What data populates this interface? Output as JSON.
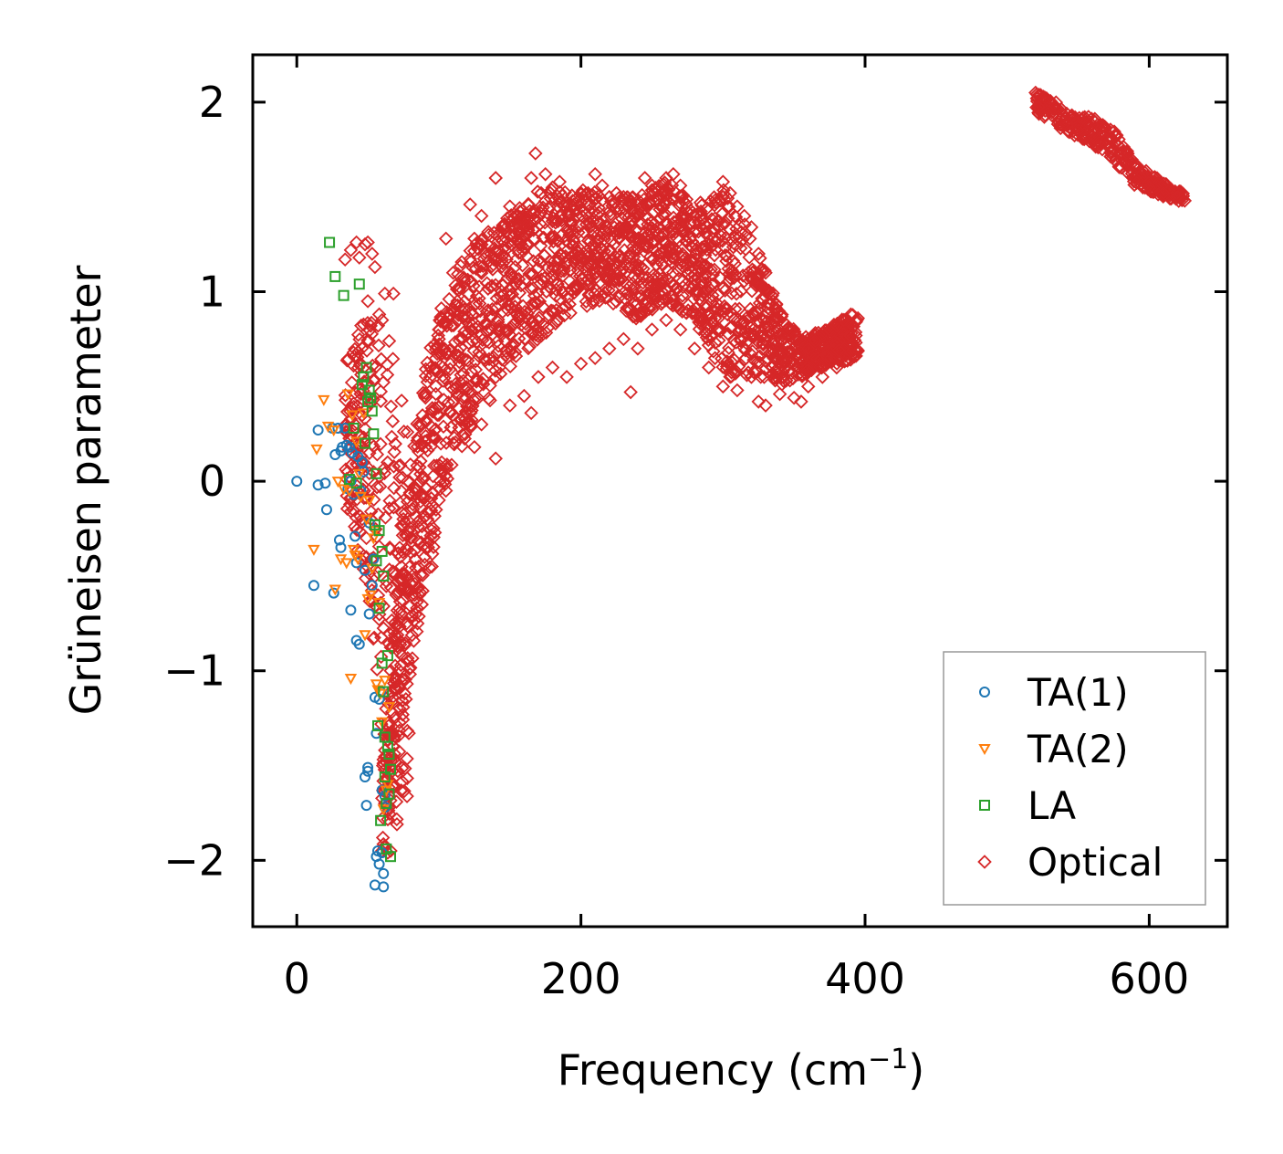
{
  "chart_data": {
    "type": "scatter",
    "title": "",
    "xlabel": "Frequency (cm",
    "xlabel_superscript": "−1",
    "xlabel_suffix": ")",
    "ylabel": "Grüneisen parameter",
    "xlim": [
      -31,
      655
    ],
    "ylim": [
      -2.35,
      2.25
    ],
    "xticks": [
      0,
      200,
      400,
      600
    ],
    "xtick_labels": [
      "0",
      "200",
      "400",
      "600"
    ],
    "yticks": [
      -2,
      -1,
      0,
      1,
      2
    ],
    "ytick_labels": [
      "−2",
      "−1",
      "0",
      "1",
      "2"
    ],
    "grid": false,
    "legend_position": "lower-right",
    "series": [
      {
        "name": "TA(1)",
        "marker": "circle",
        "color": "#1f77b4",
        "points": [
          [
            0,
            0
          ],
          [
            12,
            -0.55
          ],
          [
            15,
            0.27
          ],
          [
            15,
            -0.02
          ],
          [
            20,
            -0.01
          ],
          [
            21,
            -0.15
          ],
          [
            25,
            0.28
          ],
          [
            26,
            -0.59
          ],
          [
            27,
            0.14
          ],
          [
            29,
            0.28
          ],
          [
            30,
            -0.31
          ],
          [
            31,
            0.16
          ],
          [
            31,
            -0.35
          ],
          [
            32,
            0.18
          ],
          [
            34,
            0.28
          ],
          [
            35,
            0.19
          ],
          [
            36,
            -0.04
          ],
          [
            37,
            0.18
          ],
          [
            38,
            -0.68
          ],
          [
            38,
            0.0
          ],
          [
            39,
            0.15
          ],
          [
            40,
            -0.07
          ],
          [
            41,
            -0.29
          ],
          [
            42,
            -0.84
          ],
          [
            42,
            -0.43
          ],
          [
            43,
            0.13
          ],
          [
            44,
            -0.86
          ],
          [
            45,
            -0.05
          ],
          [
            46,
            0.1
          ],
          [
            47,
            0.05
          ],
          [
            48,
            -0.47
          ],
          [
            48,
            -1.56
          ],
          [
            49,
            -1.71
          ],
          [
            50,
            -1.53
          ],
          [
            50,
            -1.51
          ],
          [
            51,
            -0.22
          ],
          [
            51,
            -0.7
          ],
          [
            53,
            -0.55
          ],
          [
            54,
            -0.41
          ],
          [
            55,
            -2.13
          ],
          [
            55,
            -1.14
          ],
          [
            56,
            -1.98
          ],
          [
            56,
            -1.33
          ],
          [
            57,
            -1.95
          ],
          [
            58,
            -2.02
          ],
          [
            58,
            -1.15
          ],
          [
            59,
            -1.11
          ],
          [
            60,
            -1.96
          ],
          [
            60,
            -1.63
          ],
          [
            61,
            -2.14
          ],
          [
            61,
            -2.07
          ],
          [
            62,
            -1.66
          ],
          [
            62,
            -1.72
          ]
        ]
      },
      {
        "name": "TA(2)",
        "marker": "triangle-down",
        "color": "#ff7f0e",
        "points": [
          [
            12,
            -0.36
          ],
          [
            14,
            0.17
          ],
          [
            19,
            0.43
          ],
          [
            22,
            0.29
          ],
          [
            26,
            0.27
          ],
          [
            27,
            -0.57
          ],
          [
            29,
            0.0
          ],
          [
            31,
            -0.41
          ],
          [
            33,
            -0.04
          ],
          [
            35,
            -0.43
          ],
          [
            36,
            0.46
          ],
          [
            37,
            -0.05
          ],
          [
            38,
            -1.04
          ],
          [
            39,
            0.35
          ],
          [
            40,
            -0.36
          ],
          [
            41,
            -0.39
          ],
          [
            42,
            0.21
          ],
          [
            43,
            -0.41
          ],
          [
            44,
            0.04
          ],
          [
            45,
            -0.08
          ],
          [
            47,
            0.36
          ],
          [
            48,
            -0.81
          ],
          [
            49,
            -0.2
          ],
          [
            50,
            -0.62
          ],
          [
            51,
            -0.1
          ],
          [
            52,
            -0.6
          ],
          [
            53,
            -0.46
          ],
          [
            54,
            -0.3
          ],
          [
            55,
            -0.26
          ],
          [
            56,
            -1.07
          ],
          [
            57,
            -1.1
          ],
          [
            58,
            -0.64
          ],
          [
            59,
            -1.12
          ],
          [
            60,
            -1.27
          ],
          [
            61,
            -1.73
          ],
          [
            62,
            -1.05
          ],
          [
            63,
            -1.63
          ],
          [
            64,
            -1.6
          ],
          [
            65,
            -1.19
          ]
        ]
      },
      {
        "name": "LA",
        "marker": "square",
        "color": "#2ca02c",
        "points": [
          [
            23,
            1.26
          ],
          [
            27,
            1.08
          ],
          [
            33,
            0.98
          ],
          [
            37,
            0.01
          ],
          [
            40,
            0.28
          ],
          [
            42,
            -0.01
          ],
          [
            44,
            1.04
          ],
          [
            46,
            0.51
          ],
          [
            47,
            0.55
          ],
          [
            48,
            0.2
          ],
          [
            49,
            0.6
          ],
          [
            50,
            0.42
          ],
          [
            51,
            0.48
          ],
          [
            52,
            0.44
          ],
          [
            53,
            0.37
          ],
          [
            54,
            0.25
          ],
          [
            55,
            -0.23
          ],
          [
            56,
            0.04
          ],
          [
            56,
            -0.42
          ],
          [
            57,
            -1.29
          ],
          [
            58,
            -0.26
          ],
          [
            58,
            -0.67
          ],
          [
            59,
            -1.79
          ],
          [
            60,
            -0.37
          ],
          [
            60,
            -0.96
          ],
          [
            61,
            -1.11
          ],
          [
            61,
            -0.5
          ],
          [
            62,
            -1.35
          ],
          [
            62,
            -1.56
          ],
          [
            63,
            -1.7
          ],
          [
            63,
            -1.94
          ],
          [
            64,
            -0.92
          ],
          [
            64,
            -1.4
          ],
          [
            65,
            -1.44
          ],
          [
            65,
            -1.65
          ],
          [
            66,
            -1.98
          ],
          [
            66,
            -1.52
          ]
        ]
      },
      {
        "name": "Optical",
        "marker": "diamond",
        "color": "#d62728",
        "density": 2600,
        "envelope_description": "dense clouds: low-frequency band 34–80 cm^-1 spanning -2.0 to 1.3; main band 60–400 cm^-1 rising from about -2 to 1.2–1.6 then falling to 0.5–0.8; high-frequency band 520–630 cm^-1 decreasing from 2.05 to 1.48",
        "points": [
          [
            34,
            1.17
          ],
          [
            38,
            1.22
          ],
          [
            42,
            1.26
          ],
          [
            44,
            1.18
          ],
          [
            48,
            1.25
          ],
          [
            50,
            1.26
          ],
          [
            53,
            1.2
          ],
          [
            55,
            1.13
          ],
          [
            58,
            0.88
          ],
          [
            60,
            0.85
          ],
          [
            62,
            0.99
          ],
          [
            65,
            0.74
          ],
          [
            68,
            0.99
          ],
          [
            36,
            0.64
          ],
          [
            40,
            0.61
          ],
          [
            45,
            0.62
          ],
          [
            50,
            0.95
          ],
          [
            52,
            0.82
          ],
          [
            40,
            0.41
          ],
          [
            41,
            0.3
          ],
          [
            44,
            0.2
          ],
          [
            46,
            -0.2
          ],
          [
            49,
            -0.3
          ],
          [
            52,
            -0.2
          ],
          [
            55,
            -0.5
          ],
          [
            47,
            0.1
          ],
          [
            60,
            -1.95
          ],
          [
            62,
            -1.93
          ],
          [
            64,
            -1.96
          ],
          [
            66,
            -1.95
          ],
          [
            62,
            -1.7
          ],
          [
            65,
            -1.66
          ],
          [
            68,
            -1.4
          ],
          [
            70,
            -1.1
          ],
          [
            72,
            -0.9
          ],
          [
            74,
            -0.7
          ],
          [
            70,
            -0.6
          ],
          [
            73,
            -0.4
          ],
          [
            75,
            -0.2
          ],
          [
            78,
            0.0
          ],
          [
            80,
            -0.3
          ],
          [
            83,
            -0.6
          ],
          [
            85,
            -0.75
          ],
          [
            88,
            -0.65
          ],
          [
            90,
            -0.4
          ],
          [
            92,
            -0.2
          ],
          [
            95,
            -0.45
          ],
          [
            98,
            -0.15
          ],
          [
            100,
            -0.1
          ],
          [
            102,
            0.1
          ],
          [
            105,
            -0.05
          ],
          [
            88,
            0.3
          ],
          [
            90,
            0.45
          ],
          [
            94,
            0.6
          ],
          [
            100,
            0.8
          ],
          [
            105,
            1.28
          ],
          [
            110,
            1.1
          ],
          [
            115,
            1.02
          ],
          [
            118,
            1.05
          ],
          [
            122,
            1.46
          ],
          [
            125,
            1.28
          ],
          [
            130,
            1.4
          ],
          [
            135,
            1.3
          ],
          [
            140,
            1.6
          ],
          [
            145,
            1.35
          ],
          [
            150,
            1.45
          ],
          [
            155,
            1.4
          ],
          [
            160,
            1.38
          ],
          [
            165,
            1.6
          ],
          [
            168,
            1.73
          ],
          [
            172,
            1.52
          ],
          [
            175,
            1.62
          ],
          [
            178,
            1.45
          ],
          [
            180,
            1.55
          ],
          [
            185,
            1.58
          ],
          [
            190,
            1.47
          ],
          [
            195,
            1.46
          ],
          [
            200,
            1.52
          ],
          [
            205,
            1.52
          ],
          [
            210,
            1.62
          ],
          [
            215,
            1.56
          ],
          [
            220,
            1.5
          ],
          [
            225,
            1.52
          ],
          [
            230,
            1.5
          ],
          [
            235,
            1.48
          ],
          [
            240,
            1.42
          ],
          [
            245,
            1.6
          ],
          [
            250,
            1.56
          ],
          [
            255,
            1.46
          ],
          [
            260,
            1.6
          ],
          [
            265,
            1.62
          ],
          [
            270,
            1.56
          ],
          [
            275,
            1.42
          ],
          [
            280,
            1.4
          ],
          [
            285,
            1.38
          ],
          [
            290,
            1.36
          ],
          [
            295,
            1.47
          ],
          [
            300,
            1.58
          ],
          [
            305,
            1.52
          ],
          [
            310,
            1.45
          ],
          [
            315,
            1.4
          ],
          [
            320,
            1.34
          ],
          [
            325,
            1.2
          ],
          [
            330,
            1.1
          ],
          [
            335,
            0.95
          ],
          [
            340,
            0.85
          ],
          [
            345,
            0.8
          ],
          [
            350,
            0.75
          ],
          [
            355,
            0.72
          ],
          [
            360,
            0.7
          ],
          [
            365,
            0.74
          ],
          [
            370,
            0.78
          ],
          [
            375,
            0.8
          ],
          [
            380,
            0.82
          ],
          [
            385,
            0.85
          ],
          [
            390,
            0.88
          ],
          [
            395,
            0.86
          ],
          [
            100,
            0.35
          ],
          [
            110,
            0.2
          ],
          [
            118,
            0.3
          ],
          [
            125,
            0.18
          ],
          [
            130,
            0.3
          ],
          [
            140,
            0.12
          ],
          [
            150,
            0.4
          ],
          [
            160,
            0.45
          ],
          [
            165,
            0.36
          ],
          [
            170,
            0.55
          ],
          [
            180,
            0.6
          ],
          [
            190,
            0.55
          ],
          [
            200,
            0.62
          ],
          [
            210,
            0.65
          ],
          [
            220,
            0.7
          ],
          [
            230,
            0.75
          ],
          [
            235,
            0.47
          ],
          [
            240,
            0.7
          ],
          [
            250,
            0.8
          ],
          [
            260,
            0.85
          ],
          [
            270,
            0.8
          ],
          [
            280,
            0.7
          ],
          [
            290,
            0.6
          ],
          [
            300,
            0.5
          ],
          [
            310,
            0.48
          ],
          [
            320,
            0.55
          ],
          [
            325,
            0.42
          ],
          [
            330,
            0.4
          ],
          [
            340,
            0.46
          ],
          [
            350,
            0.44
          ],
          [
            355,
            0.42
          ],
          [
            360,
            0.5
          ],
          [
            370,
            0.55
          ],
          [
            380,
            0.6
          ],
          [
            390,
            0.68
          ],
          [
            520,
            2.05
          ],
          [
            530,
            1.95
          ],
          [
            540,
            1.9
          ],
          [
            550,
            1.85
          ],
          [
            560,
            1.88
          ],
          [
            570,
            1.8
          ],
          [
            580,
            1.7
          ],
          [
            590,
            1.6
          ],
          [
            600,
            1.55
          ],
          [
            610,
            1.52
          ],
          [
            620,
            1.5
          ],
          [
            625,
            1.48
          ]
        ]
      }
    ]
  }
}
